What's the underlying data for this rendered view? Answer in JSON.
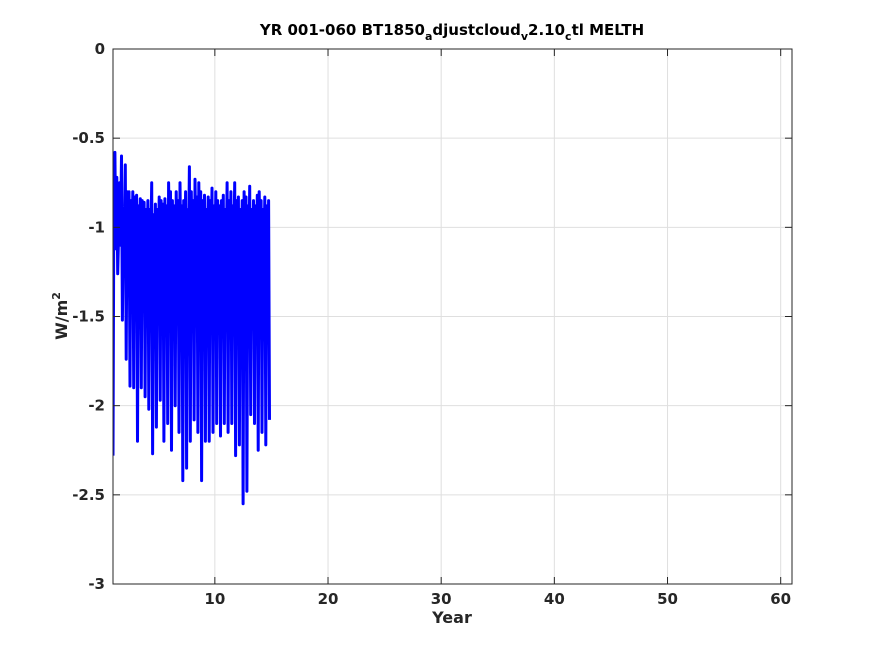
{
  "chart_data": {
    "type": "line",
    "title_parts": [
      {
        "text": "YR 001-060 BT1850",
        "sub": false
      },
      {
        "text": "a",
        "sub": true
      },
      {
        "text": "djustcloud",
        "sub": false
      },
      {
        "text": "v",
        "sub": true
      },
      {
        "text": "2.10",
        "sub": false
      },
      {
        "text": "c",
        "sub": true
      },
      {
        "text": "tl MELTH",
        "sub": false
      }
    ],
    "xlabel": "Year",
    "ylabel_base": "W/m",
    "ylabel_sup": "2",
    "xlim": [
      1,
      61
    ],
    "ylim": [
      -3,
      0
    ],
    "xticks": [
      10,
      20,
      30,
      40,
      50,
      60
    ],
    "yticks": [
      0,
      -0.5,
      -1,
      -1.5,
      -2,
      -2.5,
      -3
    ],
    "grid": true,
    "line_color": "#0000ff",
    "series": [
      {
        "sampling": "monthly",
        "x_start": 1,
        "x_step": 0.0833333,
        "values": [
          -2.28,
          -0.75,
          -0.58,
          -1.12,
          -0.72,
          -1.26,
          -1.02,
          -0.75,
          -1.1,
          -0.6,
          -1.52,
          -0.95,
          -1.1,
          -0.65,
          -1.74,
          -0.8,
          -1.15,
          -0.8,
          -1.89,
          -0.85,
          -1.2,
          -0.8,
          -1.9,
          -0.83,
          -1.2,
          -0.82,
          -2.2,
          -0.88,
          -1.15,
          -0.84,
          -1.9,
          -0.85,
          -1.25,
          -0.86,
          -1.95,
          -0.9,
          -1.2,
          -0.85,
          -2.02,
          -0.9,
          -1.15,
          -0.75,
          -2.27,
          -0.93,
          -1.3,
          -0.87,
          -2.12,
          -0.9,
          -1.2,
          -0.83,
          -1.97,
          -0.85,
          -1.15,
          -0.87,
          -2.2,
          -0.84,
          -1.25,
          -0.88,
          -2.1,
          -0.75,
          -1.2,
          -0.8,
          -2.25,
          -0.85,
          -1.3,
          -0.88,
          -2.0,
          -0.8,
          -1.2,
          -0.85,
          -2.15,
          -0.75,
          -1.2,
          -0.88,
          -2.42,
          -0.85,
          -1.25,
          -0.8,
          -2.35,
          -0.9,
          -1.2,
          -0.66,
          -2.2,
          -0.8,
          -1.2,
          -0.85,
          -2.08,
          -0.73,
          -1.15,
          -0.83,
          -2.15,
          -0.75,
          -1.2,
          -0.8,
          -2.42,
          -0.85,
          -1.25,
          -0.82,
          -2.2,
          -0.9,
          -1.15,
          -0.83,
          -2.2,
          -0.85,
          -1.2,
          -0.78,
          -2.15,
          -0.88,
          -1.25,
          -0.8,
          -2.1,
          -0.85,
          -1.15,
          -0.88,
          -2.17,
          -0.85,
          -1.2,
          -0.82,
          -2.1,
          -0.9,
          -1.25,
          -0.75,
          -2.15,
          -0.85,
          -1.2,
          -0.8,
          -2.1,
          -0.88,
          -1.15,
          -0.75,
          -2.28,
          -0.85,
          -1.2,
          -0.83,
          -2.22,
          -0.9,
          -1.25,
          -0.85,
          -2.55,
          -0.8,
          -1.15,
          -0.83,
          -2.48,
          -0.88,
          -1.2,
          -0.77,
          -2.05,
          -0.9,
          -1.25,
          -0.85,
          -2.1,
          -0.88,
          -1.2,
          -0.82,
          -2.25,
          -0.8,
          -1.15,
          -0.85,
          -2.15,
          -0.9,
          -1.2,
          -0.83,
          -2.22,
          -0.88,
          -1.25,
          -0.85,
          -2.08
        ]
      }
    ]
  }
}
